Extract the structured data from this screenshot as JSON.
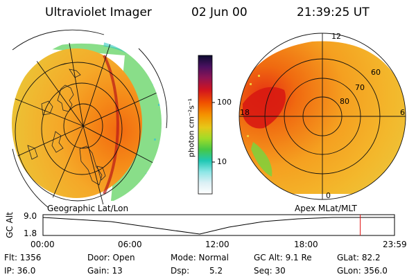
{
  "header": {
    "title": "Ultraviolet Imager",
    "date": "02 Jun 00",
    "time": "21:39:25 UT"
  },
  "left_panel": {
    "caption": "Geographic Lat/Lon"
  },
  "right_panel": {
    "caption": "Apex MLat/MLT",
    "lat_labels": [
      "80",
      "70",
      "60"
    ],
    "mlt_labels": {
      "top": "12",
      "left": "18",
      "right": "6",
      "bottom": "0"
    }
  },
  "colorbar": {
    "label": "photon cm⁻²s⁻¹",
    "ticks": [
      "100",
      "10"
    ],
    "colors": [
      "#0c0c30",
      "#4a1060",
      "#8c1454",
      "#d2141e",
      "#f05000",
      "#f59300",
      "#e6c818",
      "#a0dc28",
      "#46c846",
      "#20c8b4",
      "#8ce6e6",
      "#dcf0f5",
      "#ffffff"
    ]
  },
  "altitude_plot": {
    "ylabel": "GC Alt",
    "ymax": "9.0",
    "ymin": "1.8",
    "xticks": [
      "00:00",
      "06:00",
      "12:00",
      "18:00",
      "23:59"
    ],
    "cursor_hour": 21.66
  },
  "footer": {
    "flt": "Flt: 1356",
    "ip": "IP: 36.0",
    "door": "Door: Open",
    "gain": "Gain: 13",
    "mode": "Mode: Normal",
    "dsp_label": "Dsp:",
    "dsp_value": "5.2",
    "gc_alt": "GC Alt: 9.1 Re",
    "seq": "Seq: 30",
    "glat": "GLat: 82.2",
    "glon": "GLon: 356.0"
  }
}
